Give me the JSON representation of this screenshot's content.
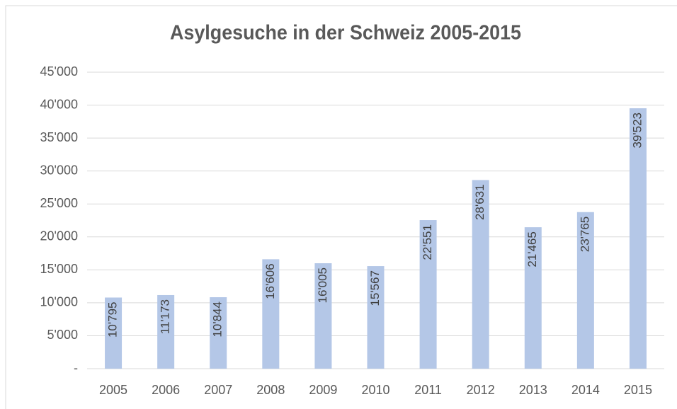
{
  "chart_data": {
    "type": "bar",
    "title": "Asylgesuche  in der Schweiz 2005-2015",
    "categories": [
      "2005",
      "2006",
      "2007",
      "2008",
      "2009",
      "2010",
      "2011",
      "2012",
      "2013",
      "2014",
      "2015"
    ],
    "values": [
      10795,
      11173,
      10844,
      16606,
      16005,
      15567,
      22551,
      28631,
      21465,
      23765,
      39523
    ],
    "value_labels": [
      "10'795",
      "11'173",
      "10'844",
      "16'606",
      "16'005",
      "15'567",
      "22'551",
      "28'631",
      "21'465",
      "23'765",
      "39'523"
    ],
    "color": "#b4c7e7",
    "ylim": [
      0,
      45000
    ],
    "yticks": [
      {
        "value": 0,
        "label": "-"
      },
      {
        "value": 5000,
        "label": "5'000"
      },
      {
        "value": 10000,
        "label": "10'000"
      },
      {
        "value": 15000,
        "label": "15'000"
      },
      {
        "value": 20000,
        "label": "20'000"
      },
      {
        "value": 25000,
        "label": "25'000"
      },
      {
        "value": 30000,
        "label": "30'000"
      },
      {
        "value": 35000,
        "label": "35'000"
      },
      {
        "value": 40000,
        "label": "40'000"
      },
      {
        "value": 45000,
        "label": "45'000"
      }
    ],
    "grid": true
  }
}
